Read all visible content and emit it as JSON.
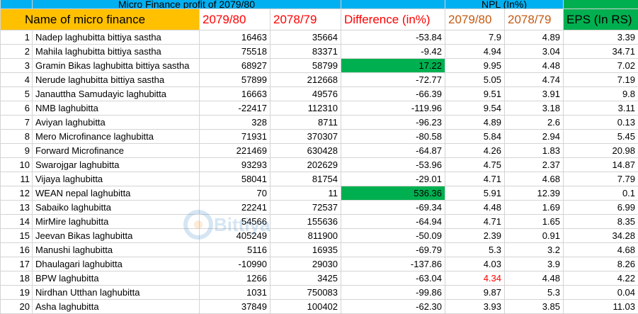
{
  "header": {
    "title": "Micro Finance profit of 2079/80",
    "npl_title": "NPL (In%)",
    "col_name": "Name of micro finance",
    "col_profit_2079": "2079/80",
    "col_profit_2078": "2078/79",
    "col_diff": "Difference (in%)",
    "col_npl_2079": "2079/80",
    "col_npl_2078": "2078/79",
    "col_eps": "EPS (In RS)"
  },
  "watermark": "Bittiya",
  "colors": {
    "blue": "#00b0f0",
    "orange": "#ffc000",
    "green": "#00b050",
    "red": "#ff0000",
    "brown": "#c55a11"
  },
  "rows": [
    {
      "idx": "1",
      "name": "Nadep laghubitta bittiya sastha",
      "p1": "16463",
      "p2": "35664",
      "diff": "-53.84",
      "n1": "7.9",
      "n2": "4.89",
      "eps": "3.39"
    },
    {
      "idx": "2",
      "name": "Mahila laghubitta bittiya sastha",
      "p1": "75518",
      "p2": "83371",
      "diff": "-9.42",
      "n1": "4.94",
      "n2": "3.04",
      "eps": "34.71"
    },
    {
      "idx": "3",
      "name": "Gramin Bikas laghubitta bittiya sastha",
      "p1": "68927",
      "p2": "58799",
      "diff": "17.22",
      "n1": "9.95",
      "n2": "4.48",
      "eps": "7.02",
      "highlight": true
    },
    {
      "idx": "4",
      "name": "Nerude laghubitta bittiya sastha",
      "p1": "57899",
      "p2": "212668",
      "diff": "-72.77",
      "n1": "5.05",
      "n2": "4.74",
      "eps": "7.19"
    },
    {
      "idx": "5",
      "name": "Janauttha Samudayic laghubitta",
      "p1": "16663",
      "p2": "49576",
      "diff": "-66.39",
      "n1": "9.51",
      "n2": "3.91",
      "eps": "9.8"
    },
    {
      "idx": "6",
      "name": "NMB laghubitta",
      "p1": "-22417",
      "p2": "112310",
      "diff": "-119.96",
      "n1": "9.54",
      "n2": "3.18",
      "eps": "3.11"
    },
    {
      "idx": "7",
      "name": "Aviyan laghubitta",
      "p1": "328",
      "p2": "8711",
      "diff": "-96.23",
      "n1": "4.89",
      "n2": "2.6",
      "eps": "0.13"
    },
    {
      "idx": "8",
      "name": "Mero Microfinance laghubitta",
      "p1": "71931",
      "p2": "370307",
      "diff": "-80.58",
      "n1": "5.84",
      "n2": "2.94",
      "eps": "5.45"
    },
    {
      "idx": "9",
      "name": "Forward Microfinance",
      "p1": "221469",
      "p2": "630428",
      "diff": "-64.87",
      "n1": "4.26",
      "n2": "1.83",
      "eps": "20.98"
    },
    {
      "idx": "10",
      "name": "Swarojgar laghubitta",
      "p1": "93293",
      "p2": "202629",
      "diff": "-53.96",
      "n1": "4.75",
      "n2": "2.37",
      "eps": "14.87"
    },
    {
      "idx": "11",
      "name": "Vijaya laghubitta",
      "p1": "58041",
      "p2": "81754",
      "diff": "-29.01",
      "n1": "4.71",
      "n2": "4.68",
      "eps": "7.79"
    },
    {
      "idx": "12",
      "name": "WEAN nepal laghubitta",
      "p1": "70",
      "p2": "11",
      "diff": "536.36",
      "n1": "5.91",
      "n2": "12.39",
      "eps": "0.1",
      "highlight": true
    },
    {
      "idx": "13",
      "name": "Sabaiko laghubitta",
      "p1": "22241",
      "p2": "72537",
      "diff": "-69.34",
      "n1": "4.48",
      "n2": "1.69",
      "eps": "6.99"
    },
    {
      "idx": "14",
      "name": "MirMire laghubitta",
      "p1": "54566",
      "p2": "155636",
      "diff": "-64.94",
      "n1": "4.71",
      "n2": "1.65",
      "eps": "8.35"
    },
    {
      "idx": "15",
      "name": "Jeevan Bikas laghubitta",
      "p1": "405249",
      "p2": "811900",
      "diff": "-50.09",
      "n1": "2.39",
      "n2": "0.91",
      "eps": "34.28"
    },
    {
      "idx": "16",
      "name": "Manushi laghubitta",
      "p1": "5116",
      "p2": "16935",
      "diff": "-69.79",
      "n1": "5.3",
      "n2": "3.2",
      "eps": "4.68"
    },
    {
      "idx": "17",
      "name": "Dhaulagari laghubitta",
      "p1": "-10990",
      "p2": "29030",
      "diff": "-137.86",
      "n1": "4.03",
      "n2": "3.9",
      "eps": "8.26"
    },
    {
      "idx": "18",
      "name": "BPW laghubitta",
      "p1": "1266",
      "p2": "3425",
      "diff": "-63.04",
      "n1": "4.34",
      "n2": "4.48",
      "eps": "4.22",
      "n1_red": true
    },
    {
      "idx": "19",
      "name": "Nirdhan Utthan laghubitta",
      "p1": "1031",
      "p2": "750083",
      "diff": "-99.86",
      "n1": "9.87",
      "n2": "5.3",
      "eps": "0.04"
    },
    {
      "idx": "20",
      "name": "Asha laghubitta",
      "p1": "37849",
      "p2": "100402",
      "diff": "-62.30",
      "n1": "3.93",
      "n2": "3.85",
      "eps": "11.03"
    }
  ]
}
